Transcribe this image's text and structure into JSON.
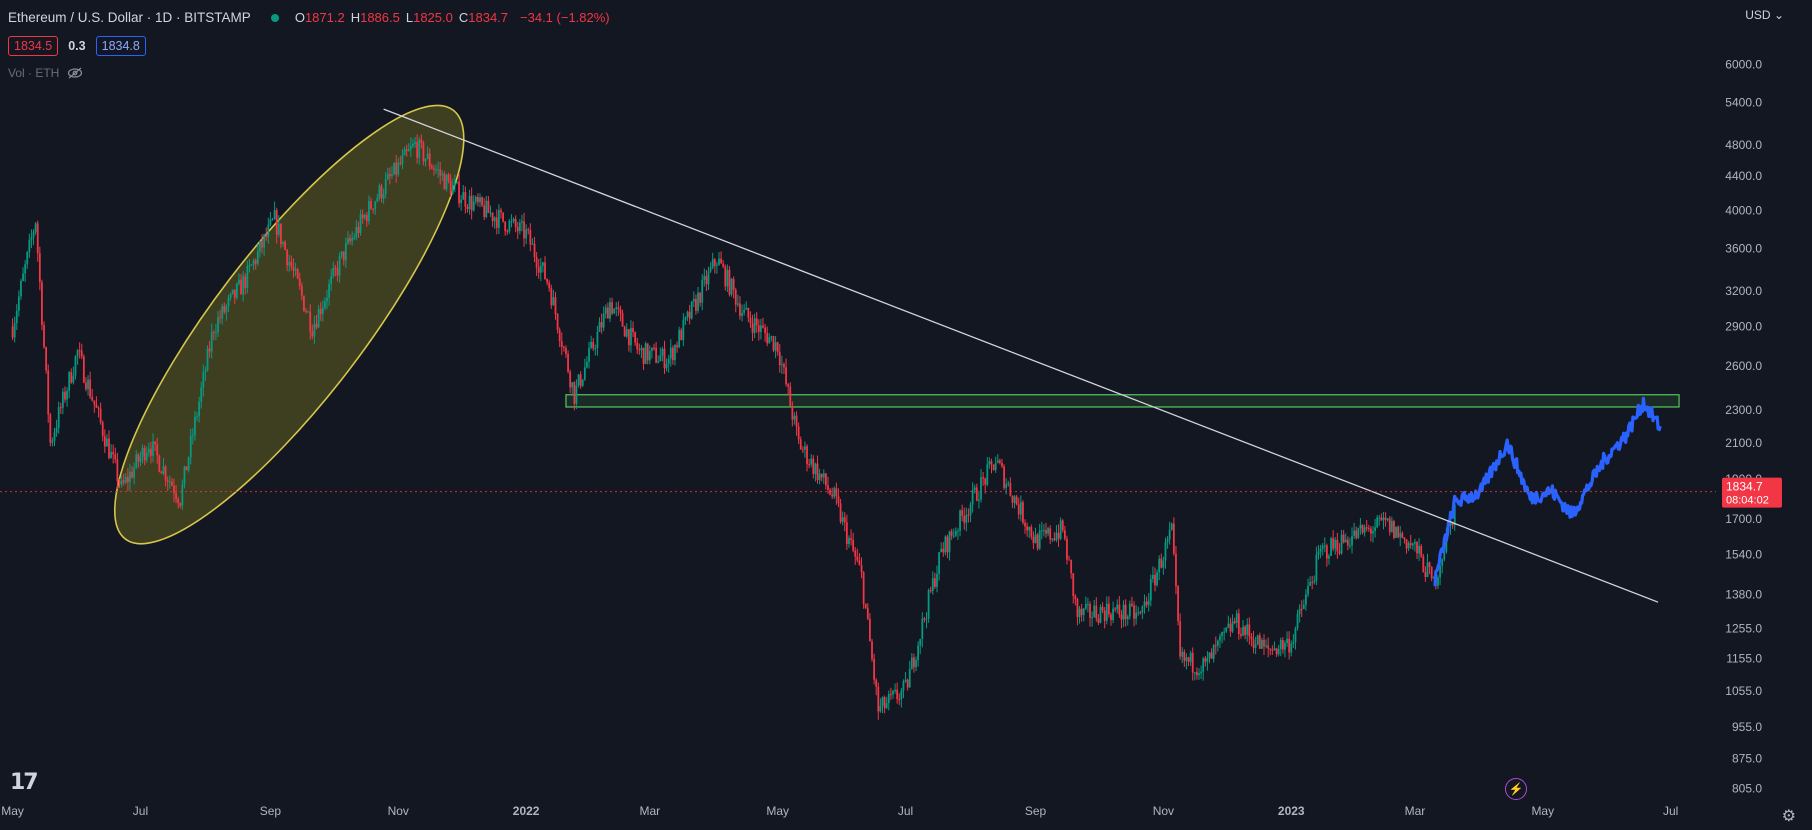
{
  "header": {
    "symbol_title": "Ethereum / U.S. Dollar · 1D · BITSTAMP",
    "ohlc": [
      {
        "key": "O",
        "value": "1871.2"
      },
      {
        "key": "H",
        "value": "1886.5"
      },
      {
        "key": "L",
        "value": "1825.0"
      },
      {
        "key": "C",
        "value": "1834.7"
      }
    ],
    "change": "−34.1 (−1.82%)",
    "bid": "1834.5",
    "spread": "0.3",
    "ask": "1834.8",
    "volume_label": "Vol · ETH",
    "currency": "USD"
  },
  "colors": {
    "background": "#131722",
    "up": "#089981",
    "down": "#f23645",
    "projection": "#2962ff",
    "trendline": "#d1d4dc",
    "zone_stroke": "#57c85a",
    "ellipse_fill": "#4a4a22",
    "ellipse_stroke": "#d6c64a"
  },
  "chart_data": {
    "type": "line",
    "y_scale": "log",
    "ylim": [
      780,
      6600
    ],
    "y_ticks": [
      "6000.0",
      "5400.0",
      "4800.0",
      "4400.0",
      "4000.0",
      "3600.0",
      "3200.0",
      "2900.0",
      "2600.0",
      "2300.0",
      "2100.0",
      "1900.0",
      "1700.0",
      "1540.0",
      "1380.0",
      "1255.0",
      "1155.0",
      "1055.0",
      "955.0",
      "875.0",
      "805.0"
    ],
    "x_ticks": [
      "May",
      "Jul",
      "Sep",
      "Nov",
      "2022",
      "Mar",
      "May",
      "Jul",
      "Sep",
      "Nov",
      "2023",
      "Mar",
      "May",
      "Jul"
    ],
    "x_tick_bold": [
      "2022",
      "2023"
    ],
    "price_series": {
      "name": "",
      "x": [
        "2021-05-01",
        "2021-05-12",
        "2021-05-19",
        "2021-06-01",
        "2021-06-22",
        "2021-07-05",
        "2021-07-20",
        "2021-08-05",
        "2021-08-20",
        "2021-09-03",
        "2021-09-21",
        "2021-10-06",
        "2021-10-20",
        "2021-11-09",
        "2021-11-25",
        "2021-12-05",
        "2021-12-20",
        "2022-01-01",
        "2022-01-12",
        "2022-01-24",
        "2022-02-10",
        "2022-02-24",
        "2022-03-10",
        "2022-04-02",
        "2022-04-15",
        "2022-05-01",
        "2022-05-11",
        "2022-05-28",
        "2022-06-10",
        "2022-06-18",
        "2022-07-01",
        "2022-07-18",
        "2022-08-13",
        "2022-09-01",
        "2022-09-14",
        "2022-09-21",
        "2022-10-05",
        "2022-10-21",
        "2022-11-05",
        "2022-11-09",
        "2022-11-21",
        "2022-12-05",
        "2022-12-20",
        "2023-01-01",
        "2023-01-15",
        "2023-01-30",
        "2023-02-15",
        "2023-03-01",
        "2023-03-10",
        "2023-03-20"
      ],
      "y": [
        2900,
        3900,
        2100,
        2700,
        1850,
        2100,
        1800,
        2900,
        3300,
        3900,
        2900,
        3550,
        4100,
        4800,
        4300,
        4100,
        3900,
        3750,
        3250,
        2400,
        3100,
        2700,
        2650,
        3500,
        3000,
        2750,
        2100,
        1800,
        1450,
        1000,
        1060,
        1550,
        2000,
        1600,
        1650,
        1300,
        1320,
        1300,
        1640,
        1150,
        1130,
        1280,
        1180,
        1210,
        1550,
        1620,
        1680,
        1570,
        1420,
        1750
      ]
    },
    "projection_series": {
      "name": "",
      "x": [
        "2023-03-10",
        "2023-03-20",
        "2023-04-01",
        "2023-04-14",
        "2023-04-25",
        "2023-05-05",
        "2023-05-15",
        "2023-05-30",
        "2023-06-10",
        "2023-06-18",
        "2023-06-26"
      ],
      "y": [
        1420,
        1780,
        1830,
        2100,
        1800,
        1840,
        1720,
        2000,
        2150,
        2350,
        2190
      ]
    },
    "last_price": "1834.7",
    "countdown": "08:04:02",
    "annotations": {
      "trendline": {
        "from": {
          "x": "2021-10-25",
          "y": 5300
        },
        "to": {
          "x": "2023-06-25",
          "y": 1350
        }
      },
      "resistance_zone": {
        "x_from": "2022-01-20",
        "x_to": "2023-07-05",
        "y_from": 2320,
        "y_to": 2400
      },
      "ellipse": {
        "from": {
          "x": "2021-07-01",
          "y": 1700
        },
        "to": {
          "x": "2021-11-20",
          "y": 5000
        }
      }
    }
  }
}
